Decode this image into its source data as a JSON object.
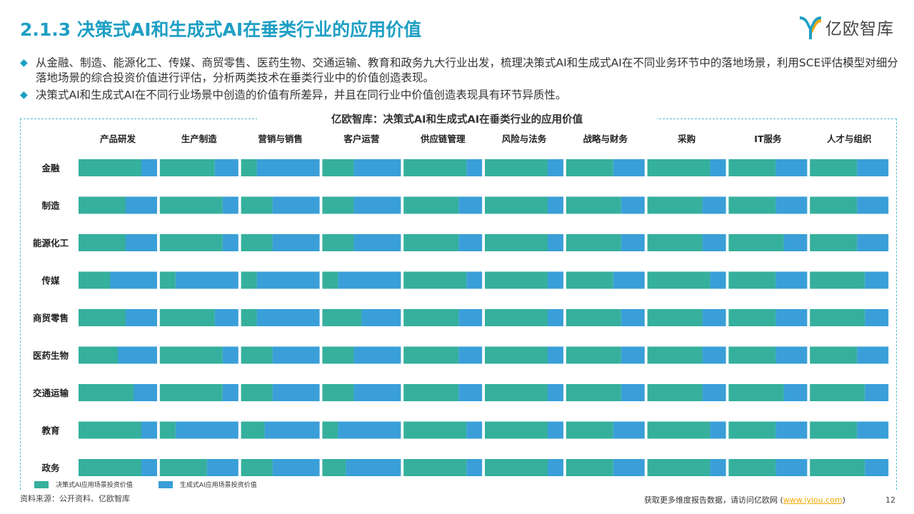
{
  "header": {
    "title": "2.1.3 决策式AI和生成式AI在垂类行业的应用价值",
    "logo_text": "亿欧智库"
  },
  "bullets": [
    {
      "icon": "diamond-bullet-icon",
      "text": "从金融、制造、能源化工、传媒、商贸零售、医药生物、交通运输、教育和政务九大行业出发，梳理决策式AI和生成式AI在不同业务环节中的落地场景，利用SCE评估模型对细分落地场景的综合投资价值进行评估，分析两类技术在垂类行业中的价值创造表现。"
    },
    {
      "icon": "diamond-bullet-icon",
      "text": "决策式AI和生成式AI在不同行业场景中创造的价值有所差异，并且在同行业中价值创造表现具有环节异质性。"
    }
  ],
  "colors": {
    "accent": "#1e9fc4",
    "decision": "#35b09c",
    "generative": "#3a9fd8",
    "frame": "#58b8d4",
    "link": "#f0a800"
  },
  "chart_data": {
    "type": "bar",
    "subtype": "stacked-100-percent-grid",
    "title": "亿欧智库：决策式AI和生成式AI在垂类行业的应用价值",
    "columns": [
      "产品研发",
      "生产制造",
      "营销与销售",
      "客户运营",
      "供应链管理",
      "风险与法务",
      "战略与财务",
      "采购",
      "IT服务",
      "人才与组织"
    ],
    "rows": [
      "金融",
      "制造",
      "能源化工",
      "传媒",
      "商贸零售",
      "医药生物",
      "交通运输",
      "教育",
      "政务"
    ],
    "series": [
      {
        "name": "决策式AI应用场景投资价值",
        "color": "#35b09c"
      },
      {
        "name": "生成式AI应用场景投资价值",
        "color": "#3a9fd8"
      }
    ],
    "decision_share": [
      [
        0.8,
        0.7,
        0.2,
        0.4,
        0.8,
        0.8,
        0.6,
        0.8,
        0.6,
        0.6
      ],
      [
        0.6,
        0.8,
        0.4,
        0.4,
        0.7,
        0.8,
        0.7,
        0.7,
        0.6,
        0.6
      ],
      [
        0.6,
        0.8,
        0.4,
        0.4,
        0.7,
        0.8,
        0.7,
        0.7,
        0.7,
        0.6
      ],
      [
        0.4,
        0.2,
        0.2,
        0.2,
        0.8,
        0.8,
        0.6,
        0.8,
        0.6,
        0.7
      ],
      [
        0.6,
        0.7,
        0.2,
        0.5,
        0.7,
        0.8,
        0.7,
        0.7,
        0.6,
        0.7
      ],
      [
        0.5,
        0.8,
        0.4,
        0.4,
        0.7,
        0.8,
        0.7,
        0.7,
        0.6,
        0.6
      ],
      [
        0.7,
        0.8,
        0.4,
        0.4,
        0.7,
        0.8,
        0.7,
        0.7,
        0.7,
        0.7
      ],
      [
        0.8,
        0.2,
        0.3,
        0.2,
        0.8,
        0.8,
        0.6,
        0.8,
        0.6,
        0.6
      ],
      [
        0.8,
        0.6,
        0.4,
        0.3,
        0.8,
        0.8,
        0.6,
        0.8,
        0.6,
        0.7
      ]
    ],
    "legend_position": "bottom-left"
  },
  "source": "资料来源：公开资料、亿欧智库",
  "footer": {
    "prefix": "获取更多维度报告数据，请访问亿欧网 (",
    "link": "www.iyiou.com",
    "suffix": ")",
    "page_number": "12"
  }
}
